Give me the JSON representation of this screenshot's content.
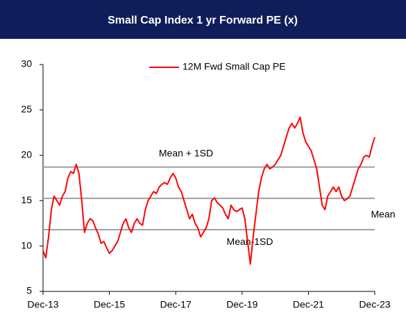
{
  "chart_data": {
    "type": "line",
    "title": "Small Cap Index 1 yr Forward PE (x)",
    "categories": [
      "Dec-13",
      null,
      null,
      null,
      null,
      null,
      null,
      null,
      null,
      null,
      null,
      null,
      null,
      null,
      null,
      null,
      null,
      null,
      null,
      null,
      null,
      null,
      null,
      null,
      "Dec-15",
      null,
      null,
      null,
      null,
      null,
      null,
      null,
      null,
      null,
      null,
      null,
      null,
      null,
      null,
      null,
      null,
      null,
      null,
      null,
      null,
      null,
      null,
      null,
      "Dec-17",
      null,
      null,
      null,
      null,
      null,
      null,
      null,
      null,
      null,
      null,
      null,
      null,
      null,
      null,
      null,
      null,
      null,
      null,
      null,
      null,
      null,
      null,
      null,
      "Dec-19",
      null,
      null,
      null,
      null,
      null,
      null,
      null,
      null,
      null,
      null,
      null,
      null,
      null,
      null,
      null,
      null,
      null,
      null,
      null,
      null,
      null,
      null,
      null,
      "Dec-21",
      null,
      null,
      null,
      null,
      null,
      null,
      null,
      null,
      null,
      null,
      null,
      null,
      null,
      null,
      null,
      null,
      null,
      null,
      null,
      null,
      null,
      null,
      null,
      "Dec-23"
    ],
    "series": [
      {
        "name": "12M Fwd Small Cap PE",
        "color": "#ff0000",
        "values": [
          9.5,
          8.7,
          11,
          14,
          15.5,
          15,
          14.5,
          15.5,
          16,
          17.5,
          18.2,
          18,
          19,
          18,
          15,
          11.5,
          12.5,
          13,
          12.8,
          12,
          11.3,
          10.3,
          10.5,
          9.8,
          9.2,
          9.5,
          10,
          10.5,
          11.5,
          12.5,
          13,
          12,
          11.5,
          12.5,
          13,
          12.5,
          12.3,
          14,
          15,
          15.5,
          16,
          15.8,
          16.5,
          16.8,
          17,
          16.8,
          17.5,
          18,
          17.5,
          16.5,
          16,
          15,
          14,
          13,
          13.5,
          12.5,
          12,
          11,
          11.5,
          12,
          13,
          15,
          15.3,
          14.8,
          14.5,
          14.2,
          13.5,
          13,
          14.5,
          14,
          13.8,
          14,
          14.2,
          13,
          10.5,
          8,
          11,
          13.5,
          16,
          17.5,
          18.5,
          19,
          18.5,
          18.7,
          19,
          19.5,
          20,
          21,
          22,
          23,
          23.5,
          23,
          23.5,
          24.2,
          22.5,
          21.5,
          21,
          20.5,
          19.5,
          18.5,
          16.5,
          14.5,
          14,
          15.5,
          16,
          16.5,
          16,
          16.5,
          15.5,
          15,
          15.2,
          15.5,
          16.5,
          17.5,
          18.5,
          19,
          19.8,
          20,
          19.8,
          21,
          22
        ]
      }
    ],
    "reference_lines": [
      {
        "label": "Mean + 1SD",
        "value": 18.7
      },
      {
        "label": "Mean",
        "value": 15.25
      },
      {
        "label": "Mean-1SD",
        "value": 11.8
      }
    ],
    "reference_color": "#a0a0a0",
    "ylim": [
      5,
      30
    ],
    "yticks": [
      5,
      10,
      15,
      20,
      25,
      30
    ],
    "legend": "top"
  }
}
